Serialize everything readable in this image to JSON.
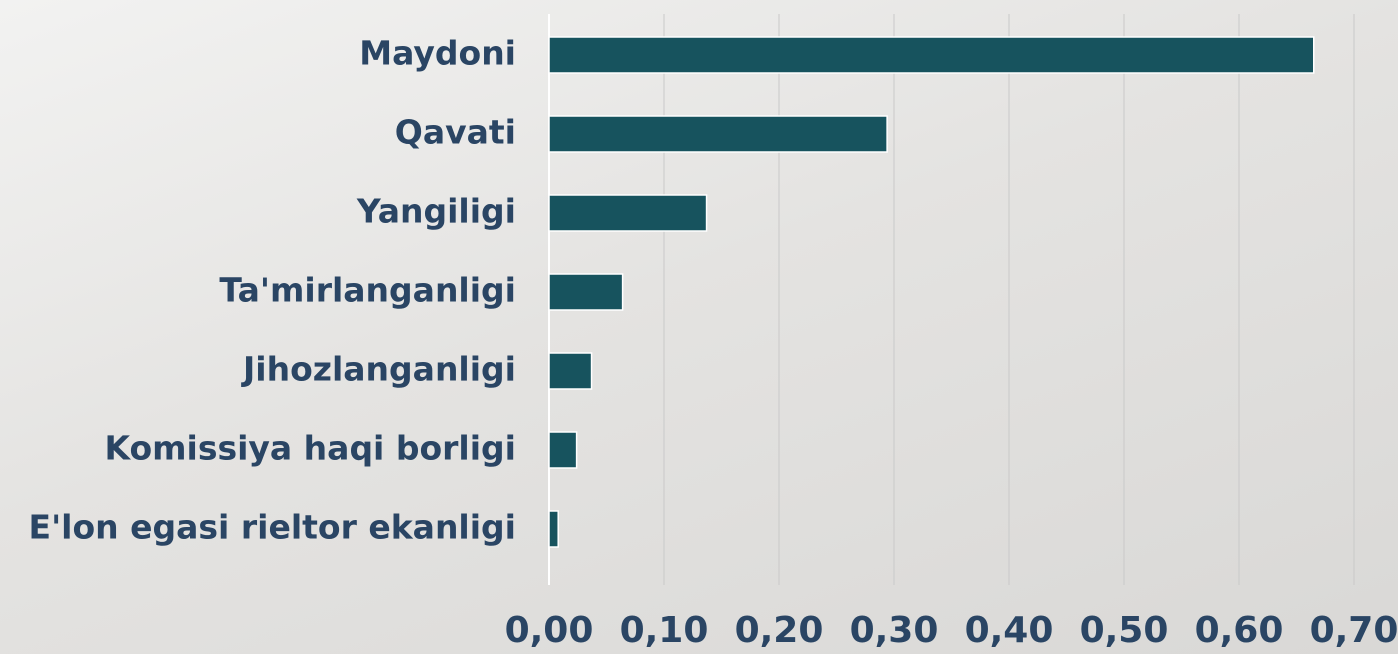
{
  "chart_data": {
    "type": "bar",
    "orientation": "horizontal",
    "categories": [
      "Maydoni",
      "Qavati",
      "Yangiligi",
      "Ta'mirlanganligi",
      "Jihozlanganligi",
      "Komissiya haqi borligi",
      "E'lon egasi rieltor ekanligi"
    ],
    "values": [
      0.665,
      0.294,
      0.137,
      0.064,
      0.037,
      0.024,
      0.008
    ],
    "color": "#17535e",
    "xlim": [
      0,
      0.7
    ],
    "xticks": [
      {
        "value": 0,
        "label": "0,00"
      },
      {
        "value": 0.1,
        "label": "0,10"
      },
      {
        "value": 0.2,
        "label": "0,20"
      },
      {
        "value": 0.3,
        "label": "0,30"
      },
      {
        "value": 0.4,
        "label": "0,40"
      },
      {
        "value": 0.5,
        "label": "0,50"
      },
      {
        "value": 0.6,
        "label": "0,60"
      },
      {
        "value": 0.7,
        "label": "0,70"
      }
    ],
    "grid": true
  }
}
